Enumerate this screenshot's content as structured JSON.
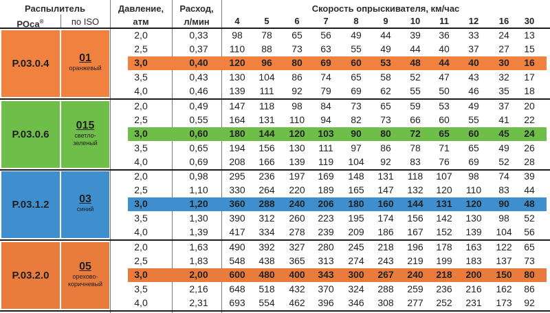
{
  "header": {
    "sprayer": "Распылитель",
    "roca": "РОса",
    "roca_mark": "®",
    "iso": "по ISO",
    "pressure": "Давление,",
    "pressure_unit": "атм",
    "flow": "Расход,",
    "flow_unit": "л/мин",
    "speed_title": "Скорость опрыскивателя, км/час",
    "speeds": [
      "4",
      "5",
      "6",
      "7",
      "8",
      "9",
      "10",
      "11",
      "12",
      "16",
      "30"
    ]
  },
  "colors": {
    "orange": "#f0813f",
    "green": "#6fbe4a",
    "blue": "#3f8fce",
    "brown": "#e97b3c"
  },
  "groups": [
    {
      "code": "P.03.0.4",
      "iso": "01",
      "color_name": [
        "оранжевый"
      ],
      "color": "#f0813f",
      "rows": [
        {
          "p": "2,0",
          "q": "0,33",
          "v": [
            "98",
            "78",
            "65",
            "56",
            "49",
            "44",
            "39",
            "36",
            "33",
            "24",
            "13"
          ]
        },
        {
          "p": "2,5",
          "q": "0,37",
          "v": [
            "110",
            "88",
            "73",
            "63",
            "55",
            "49",
            "44",
            "40",
            "37",
            "27",
            "15"
          ]
        },
        {
          "p": "3,0",
          "q": "0,40",
          "v": [
            "120",
            "96",
            "80",
            "69",
            "60",
            "53",
            "48",
            "44",
            "40",
            "30",
            "16"
          ],
          "hi": true
        },
        {
          "p": "3,5",
          "q": "0,43",
          "v": [
            "130",
            "104",
            "86",
            "74",
            "65",
            "58",
            "52",
            "47",
            "43",
            "32",
            "17"
          ]
        },
        {
          "p": "4,0",
          "q": "0,46",
          "v": [
            "139",
            "111",
            "92",
            "79",
            "69",
            "62",
            "55",
            "50",
            "46",
            "35",
            "18"
          ]
        }
      ]
    },
    {
      "code": "P.03.0.6",
      "iso": "015",
      "color_name": [
        "светло-",
        "зеленый"
      ],
      "color": "#6fbe4a",
      "rows": [
        {
          "p": "2,0",
          "q": "0,49",
          "v": [
            "147",
            "118",
            "98",
            "84",
            "73",
            "65",
            "59",
            "53",
            "49",
            "37",
            "20"
          ]
        },
        {
          "p": "2,5",
          "q": "0,55",
          "v": [
            "164",
            "131",
            "110",
            "94",
            "82",
            "73",
            "66",
            "60",
            "55",
            "41",
            "22"
          ]
        },
        {
          "p": "3,0",
          "q": "0,60",
          "v": [
            "180",
            "144",
            "120",
            "103",
            "90",
            "80",
            "72",
            "65",
            "60",
            "45",
            "24"
          ],
          "hi": true
        },
        {
          "p": "3,5",
          "q": "0,65",
          "v": [
            "194",
            "156",
            "130",
            "111",
            "97",
            "86",
            "78",
            "71",
            "65",
            "49",
            "26"
          ]
        },
        {
          "p": "4,0",
          "q": "0,69",
          "v": [
            "208",
            "166",
            "139",
            "119",
            "104",
            "92",
            "83",
            "76",
            "69",
            "52",
            "28"
          ]
        }
      ]
    },
    {
      "code": "P.03.1.2",
      "iso": "03",
      "color_name": [
        "синий"
      ],
      "color": "#3f8fce",
      "rows": [
        {
          "p": "2,0",
          "q": "0,98",
          "v": [
            "295",
            "236",
            "197",
            "169",
            "148",
            "131",
            "118",
            "107",
            "98",
            "74",
            "39"
          ]
        },
        {
          "p": "2,5",
          "q": "1,10",
          "v": [
            "330",
            "264",
            "220",
            "189",
            "165",
            "147",
            "132",
            "120",
            "110",
            "83",
            "44"
          ]
        },
        {
          "p": "3,0",
          "q": "1,20",
          "v": [
            "360",
            "288",
            "240",
            "206",
            "180",
            "160",
            "144",
            "131",
            "120",
            "90",
            "48"
          ],
          "hi": true
        },
        {
          "p": "3,5",
          "q": "1,30",
          "v": [
            "390",
            "312",
            "260",
            "223",
            "195",
            "174",
            "156",
            "142",
            "130",
            "98",
            "52"
          ]
        },
        {
          "p": "4,0",
          "q": "1,39",
          "v": [
            "417",
            "334",
            "278",
            "239",
            "209",
            "186",
            "167",
            "152",
            "139",
            "104",
            "56"
          ]
        }
      ]
    },
    {
      "code": "P.03.2.0",
      "iso": "05",
      "color_name": [
        "орехово-",
        "коричневый"
      ],
      "color": "#e97b3c",
      "rows": [
        {
          "p": "2,0",
          "q": "1,63",
          "v": [
            "490",
            "392",
            "327",
            "280",
            "245",
            "218",
            "196",
            "178",
            "163",
            "122",
            "65"
          ]
        },
        {
          "p": "2,5",
          "q": "1,83",
          "v": [
            "548",
            "438",
            "365",
            "313",
            "274",
            "243",
            "219",
            "199",
            "183",
            "137",
            "73"
          ]
        },
        {
          "p": "3,0",
          "q": "2,00",
          "v": [
            "600",
            "480",
            "400",
            "343",
            "300",
            "267",
            "240",
            "218",
            "200",
            "150",
            "80"
          ],
          "hi": true
        },
        {
          "p": "3,5",
          "q": "2,16",
          "v": [
            "648",
            "518",
            "432",
            "370",
            "324",
            "288",
            "259",
            "236",
            "216",
            "162",
            "86"
          ]
        },
        {
          "p": "4,0",
          "q": "2,31",
          "v": [
            "693",
            "554",
            "462",
            "396",
            "346",
            "308",
            "277",
            "252",
            "231",
            "173",
            "92"
          ]
        }
      ]
    }
  ]
}
